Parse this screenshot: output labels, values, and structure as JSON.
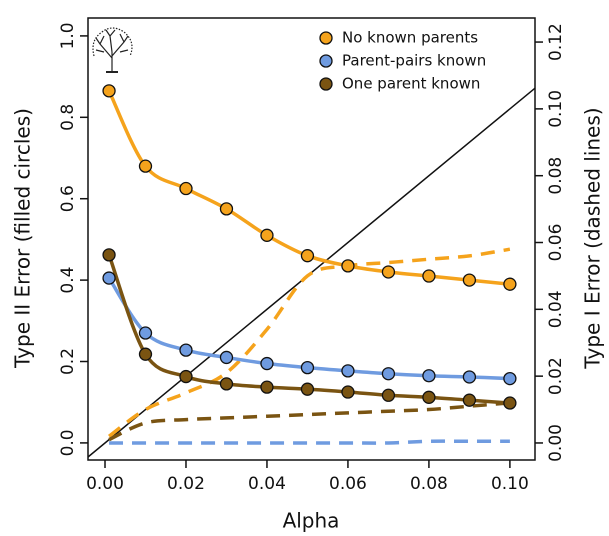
{
  "chart_data": {
    "type": "line",
    "xlabel": "Alpha",
    "ylabel": "Type II Error (filled circles)",
    "y2label": "Type I Error (dashed lines)",
    "x": [
      0.001,
      0.01,
      0.02,
      0.03,
      0.04,
      0.05,
      0.06,
      0.07,
      0.08,
      0.09,
      0.1
    ],
    "series": [
      {
        "name": "No known parents",
        "color": "#f5a31c",
        "values": [
          0.865,
          0.68,
          0.625,
          0.575,
          0.51,
          0.46,
          0.435,
          0.42,
          0.41,
          0.4,
          0.39
        ],
        "type1_values": [
          0.002,
          0.01,
          0.015,
          0.021,
          0.034,
          0.05,
          0.053,
          0.054,
          0.055,
          0.056,
          0.058
        ]
      },
      {
        "name": "Parent-pairs known",
        "color": "#6f9be0",
        "values": [
          0.405,
          0.27,
          0.228,
          0.21,
          0.195,
          0.185,
          0.177,
          0.17,
          0.165,
          0.162,
          0.158
        ],
        "type1_values": [
          0,
          0,
          0,
          0,
          0,
          0,
          0,
          0,
          0.0005,
          0.0005,
          0.0005
        ]
      },
      {
        "name": "One parent known",
        "color": "#7a5412",
        "values": [
          0.462,
          0.218,
          0.163,
          0.145,
          0.137,
          0.132,
          0.125,
          0.117,
          0.112,
          0.105,
          0.098
        ],
        "type1_values": [
          0.001,
          0.006,
          0.007,
          0.0075,
          0.008,
          0.0085,
          0.009,
          0.0095,
          0.01,
          0.011,
          0.012
        ]
      }
    ],
    "xlim": [
      -0.0042,
      0.1062
    ],
    "ylim": [
      -0.042,
      1.044
    ],
    "y2lim": [
      -0.0051,
      0.1272
    ],
    "xticks": [
      {
        "value": 0,
        "label": "0.00"
      },
      {
        "value": 0.02,
        "label": "0.02"
      },
      {
        "value": 0.04,
        "label": "0.04"
      },
      {
        "value": 0.06,
        "label": "0.06"
      },
      {
        "value": 0.08,
        "label": "0.08"
      },
      {
        "value": 0.1,
        "label": "0.10"
      }
    ],
    "yticks": [
      {
        "value": 0,
        "label": "0.0"
      },
      {
        "value": 0.2,
        "label": "0.2"
      },
      {
        "value": 0.4,
        "label": "0.4"
      },
      {
        "value": 0.6,
        "label": "0.6"
      },
      {
        "value": 0.8,
        "label": "0.8"
      },
      {
        "value": 1,
        "label": "1.0"
      }
    ],
    "y2ticks": [
      {
        "value": 0,
        "label": "0.00"
      },
      {
        "value": 0.02,
        "label": "0.02"
      },
      {
        "value": 0.04,
        "label": "0.04"
      },
      {
        "value": 0.06,
        "label": "0.06"
      },
      {
        "value": 0.08,
        "label": "0.08"
      },
      {
        "value": 0.1,
        "label": "0.10"
      },
      {
        "value": 0.12,
        "label": "0.12"
      }
    ],
    "reference_line": {
      "slope": 1,
      "intercept": 0,
      "axis": "y2"
    },
    "legend": "top-right"
  }
}
